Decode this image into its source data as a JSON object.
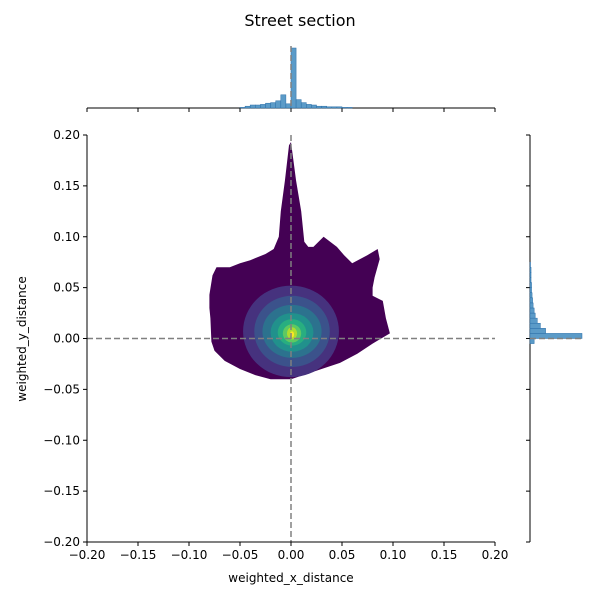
{
  "chart_data": {
    "type": "joint-kde",
    "title": "Street section",
    "xlabel": "weighted_x_distance",
    "ylabel": "weighted_y_distance",
    "xlim": [
      -0.2,
      0.2
    ],
    "ylim": [
      -0.2,
      0.2
    ],
    "xticks": [
      "−0.20",
      "−0.15",
      "−0.10",
      "−0.05",
      "0.00",
      "0.05",
      "0.10",
      "0.15",
      "0.20"
    ],
    "yticks": [
      "−0.20",
      "−0.15",
      "−0.10",
      "−0.05",
      "0.00",
      "0.05",
      "0.10",
      "0.15",
      "0.20"
    ],
    "tick_values": [
      -0.2,
      -0.15,
      -0.1,
      -0.05,
      0.0,
      0.05,
      0.1,
      0.15,
      0.2
    ],
    "reference_lines": {
      "x": 0.0,
      "y": 0.0,
      "style": "dashed",
      "color": "#808080"
    },
    "kde_outer_boundary": [
      [
        0.0,
        0.193
      ],
      [
        0.005,
        0.155
      ],
      [
        0.01,
        0.125
      ],
      [
        0.013,
        0.095
      ],
      [
        0.017,
        0.09
      ],
      [
        0.022,
        0.09
      ],
      [
        0.032,
        0.1
      ],
      [
        0.045,
        0.09
      ],
      [
        0.052,
        0.082
      ],
      [
        0.06,
        0.074
      ],
      [
        0.075,
        0.082
      ],
      [
        0.085,
        0.088
      ],
      [
        0.087,
        0.078
      ],
      [
        0.082,
        0.06
      ],
      [
        0.08,
        0.05
      ],
      [
        0.08,
        0.042
      ],
      [
        0.09,
        0.037
      ],
      [
        0.093,
        0.02
      ],
      [
        0.097,
        0.005
      ],
      [
        0.08,
        -0.005
      ],
      [
        0.065,
        -0.015
      ],
      [
        0.048,
        -0.024
      ],
      [
        0.03,
        -0.03
      ],
      [
        0.015,
        -0.035
      ],
      [
        0.0,
        -0.04
      ],
      [
        -0.02,
        -0.04
      ],
      [
        -0.035,
        -0.036
      ],
      [
        -0.05,
        -0.03
      ],
      [
        -0.065,
        -0.022
      ],
      [
        -0.075,
        -0.012
      ],
      [
        -0.078,
        -0.003
      ],
      [
        -0.079,
        0.02
      ],
      [
        -0.08,
        0.03
      ],
      [
        -0.08,
        0.043
      ],
      [
        -0.077,
        0.062
      ],
      [
        -0.073,
        0.07
      ],
      [
        -0.06,
        0.07
      ],
      [
        -0.05,
        0.074
      ],
      [
        -0.04,
        0.077
      ],
      [
        -0.025,
        0.083
      ],
      [
        -0.017,
        0.088
      ],
      [
        -0.012,
        0.1
      ],
      [
        -0.01,
        0.125
      ],
      [
        -0.006,
        0.155
      ],
      [
        -0.002,
        0.19
      ]
    ],
    "kde_levels": [
      {
        "cx": 0.0,
        "cy": 0.007,
        "rx": 0.047,
        "ry": 0.045,
        "color": "#46327e"
      },
      {
        "cx": 0.001,
        "cy": 0.007,
        "rx": 0.037,
        "ry": 0.035,
        "color": "#3b528b"
      },
      {
        "cx": 0.001,
        "cy": 0.007,
        "rx": 0.029,
        "ry": 0.026,
        "color": "#2c728e"
      },
      {
        "cx": 0.001,
        "cy": 0.006,
        "rx": 0.021,
        "ry": 0.019,
        "color": "#21918c"
      },
      {
        "cx": 0.001,
        "cy": 0.006,
        "rx": 0.014,
        "ry": 0.013,
        "color": "#28ae80"
      },
      {
        "cx": 0.001,
        "cy": 0.005,
        "rx": 0.009,
        "ry": 0.009,
        "color": "#5ec962"
      },
      {
        "cx": 0.001,
        "cy": 0.005,
        "rx": 0.005,
        "ry": 0.006,
        "color": "#addc30"
      },
      {
        "cx": 0.001,
        "cy": 0.004,
        "rx": 0.002,
        "ry": 0.003,
        "color": "#fde725"
      }
    ],
    "kde_outer_color": "#440154",
    "x_marginal_hist": {
      "bin_width": 0.005,
      "bins": [
        [
          -0.05,
          0.01
        ],
        [
          -0.045,
          0.03
        ],
        [
          -0.04,
          0.05
        ],
        [
          -0.035,
          0.05
        ],
        [
          -0.03,
          0.06
        ],
        [
          -0.025,
          0.08
        ],
        [
          -0.02,
          0.09
        ],
        [
          -0.015,
          0.12
        ],
        [
          -0.01,
          0.22
        ],
        [
          -0.005,
          0.07
        ],
        [
          0.0,
          1.0
        ],
        [
          0.005,
          0.14
        ],
        [
          0.01,
          0.09
        ],
        [
          0.015,
          0.06
        ],
        [
          0.02,
          0.05
        ],
        [
          0.025,
          0.03
        ],
        [
          0.03,
          0.03
        ],
        [
          0.035,
          0.02
        ],
        [
          0.04,
          0.02
        ],
        [
          0.045,
          0.02
        ],
        [
          0.05,
          0.01
        ],
        [
          0.055,
          0.01
        ]
      ]
    },
    "y_marginal_hist": {
      "bin_width": 0.005,
      "bins": [
        [
          -0.005,
          0.08
        ],
        [
          0.0,
          1.0
        ],
        [
          0.005,
          0.3
        ],
        [
          0.01,
          0.2
        ],
        [
          0.015,
          0.14
        ],
        [
          0.02,
          0.1
        ],
        [
          0.025,
          0.08
        ],
        [
          0.03,
          0.06
        ],
        [
          0.035,
          0.05
        ],
        [
          0.04,
          0.04
        ],
        [
          0.045,
          0.03
        ],
        [
          0.05,
          0.03
        ],
        [
          0.055,
          0.02
        ],
        [
          0.06,
          0.02
        ],
        [
          0.065,
          0.02
        ],
        [
          0.07,
          0.01
        ]
      ]
    },
    "hist_color": "#5b9bc8",
    "hist_edge_color": "#2c6fa8"
  }
}
